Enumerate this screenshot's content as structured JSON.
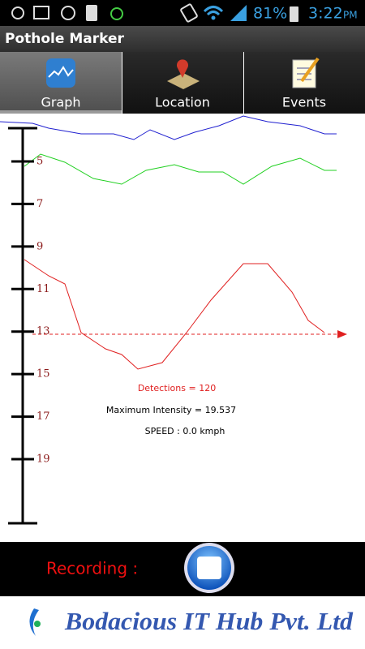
{
  "status_bar": {
    "battery": "81%",
    "time": "3:22",
    "meridiem": "PM"
  },
  "app_bar": {
    "title": "Pothole Marker"
  },
  "tabs": [
    "Graph",
    "Location",
    "Events"
  ],
  "graph": {
    "axis_labels": [
      5,
      7,
      9,
      11,
      13,
      15,
      17,
      19
    ],
    "detections": "Detections = 120",
    "maximum_intensity": "Maximum Intensity = 19.537",
    "speed": "SPEED : 0.0 kmph"
  },
  "recording": {
    "label": "Recording :"
  },
  "footer": {
    "company": "Bodacious IT Hub Pvt. Ltd"
  }
}
